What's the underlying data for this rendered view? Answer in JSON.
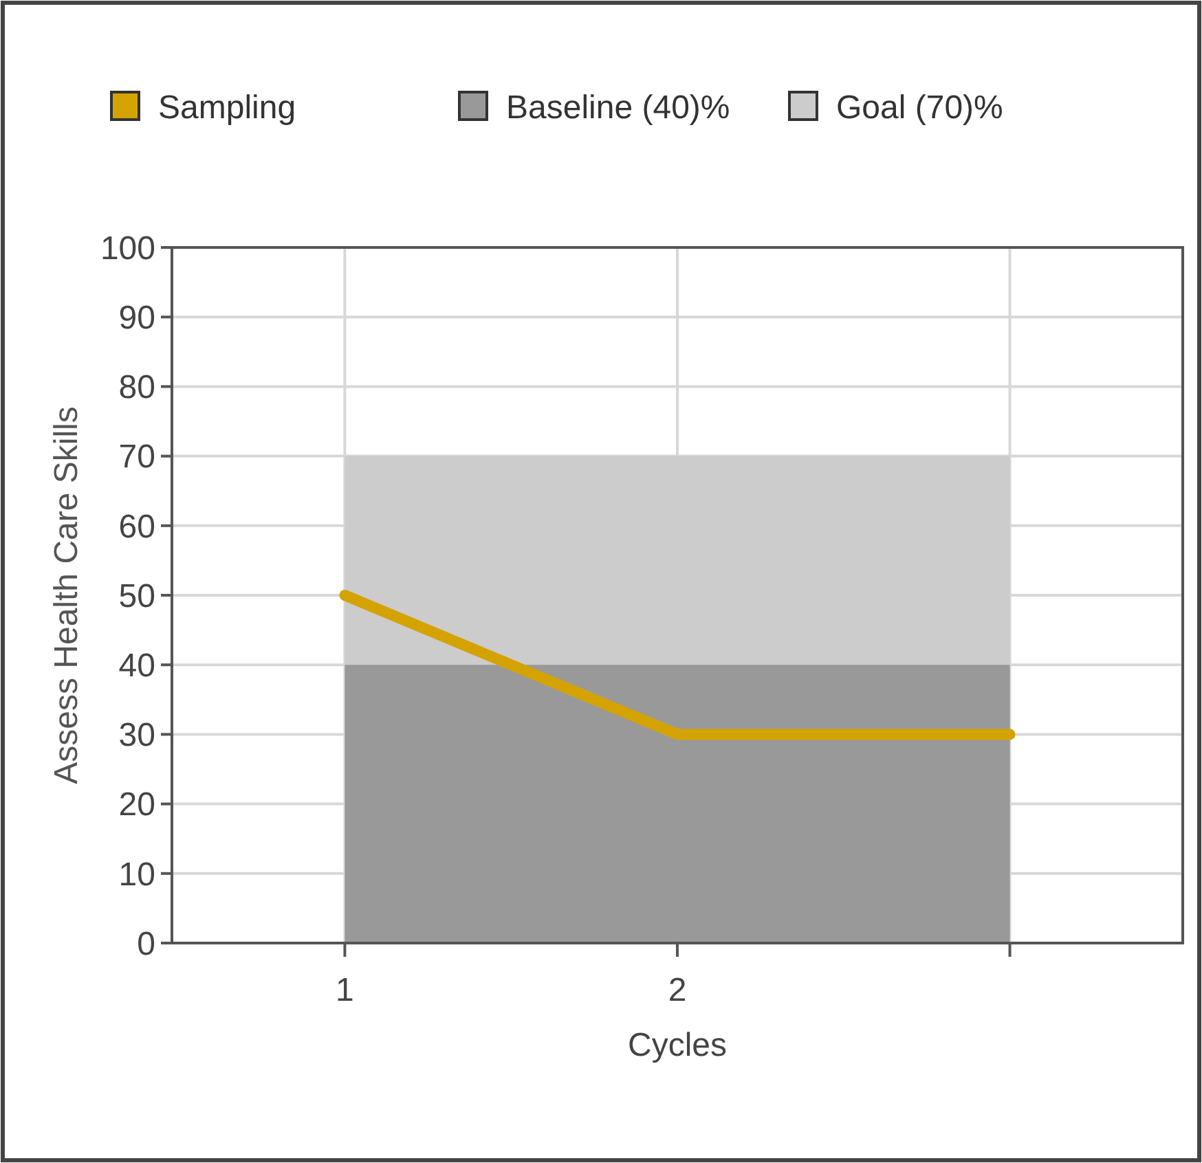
{
  "chart_data": {
    "type": "line",
    "xlabel": "Cycles",
    "ylabel": "Assess Health Care Skills",
    "categories": [
      "1",
      "2",
      null
    ],
    "series": [
      {
        "name": "Sampling",
        "color": "#d4a300",
        "values": [
          50,
          30,
          30
        ]
      },
      {
        "name": "Baseline (40)%",
        "type": "area",
        "color": "#999999",
        "values": [
          40,
          40,
          40
        ]
      },
      {
        "name": "Goal (70)%",
        "type": "area",
        "color": "#cccccc",
        "values": [
          70,
          70,
          70
        ]
      }
    ],
    "ylim": [
      0,
      100
    ],
    "yticks": [
      0,
      10,
      20,
      30,
      40,
      50,
      60,
      70,
      80,
      90,
      100
    ],
    "grid": true,
    "legend": "top",
    "marker": "none",
    "line_style": "solid"
  }
}
